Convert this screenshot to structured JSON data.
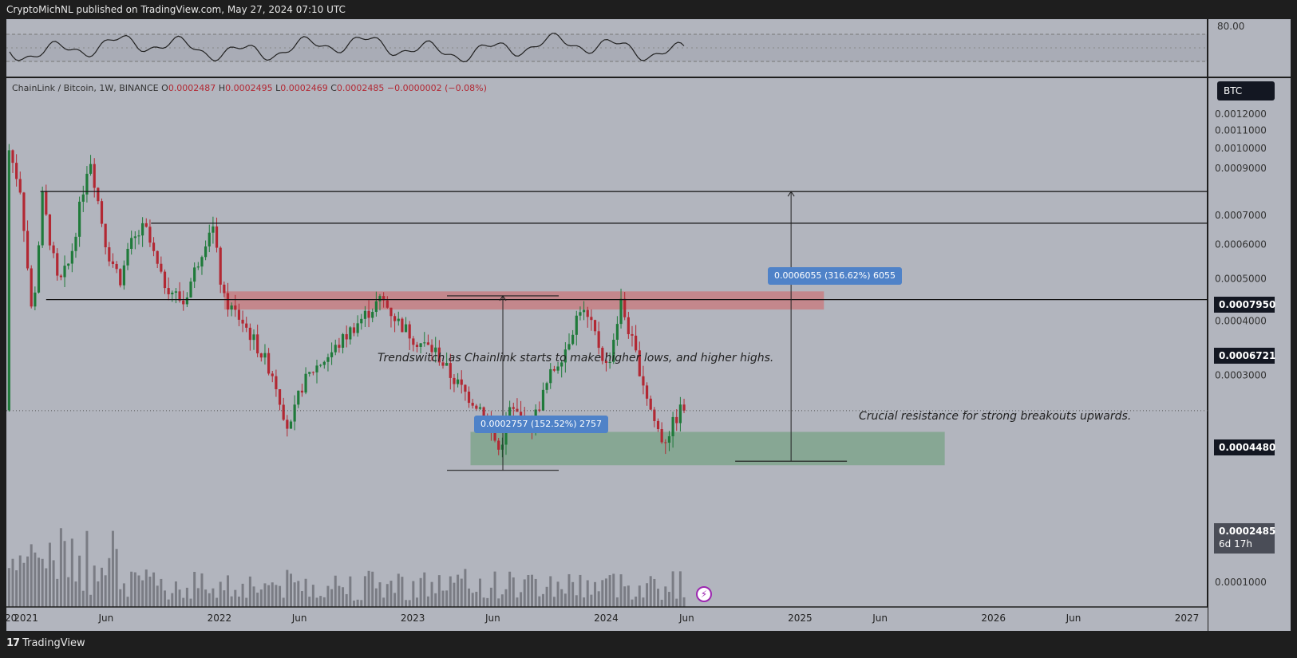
{
  "publisher_line": "CryptoMichNL published on TradingView.com, May 27, 2024 07:10 UTC",
  "brand": {
    "logo": "17",
    "name": "TradingView"
  },
  "symbol": {
    "name": "ChainLink / Bitcoin, 1W, BINANCE",
    "o_label": "O",
    "o": "0.0002487",
    "h_label": "H",
    "h": "0.0002495",
    "l_label": "L",
    "l": "0.0002469",
    "c_label": "C",
    "c": "0.0002485",
    "change": "−0.0000002 (−0.08%)"
  },
  "currency_button": "BTC",
  "rsi": {
    "level_label": "80.00"
  },
  "chart_data": {
    "type": "candlestick",
    "y_scale": "log",
    "ylim": [
      9.3e-05,
      0.0013
    ],
    "y_ticks": [
      "0.0012000",
      "0.0011000",
      "0.0010000",
      "0.0009000",
      "0.0007000",
      "0.0006000",
      "0.0005000",
      "0.0004000",
      "0.0003000",
      "0.0002000",
      "0.0001000"
    ],
    "x_range": [
      "2020-12-01",
      "2027-01-01"
    ],
    "x_ticks": [
      {
        "label": "'20",
        "date": "2020-12-01"
      },
      {
        "label": "2021",
        "date": "2021-01-01"
      },
      {
        "label": "Jun",
        "date": "2021-06-01"
      },
      {
        "label": "2022",
        "date": "2022-01-01"
      },
      {
        "label": "Jun",
        "date": "2022-06-01"
      },
      {
        "label": "2023",
        "date": "2023-01-01"
      },
      {
        "label": "Jun",
        "date": "2023-06-01"
      },
      {
        "label": "2024",
        "date": "2024-01-01"
      },
      {
        "label": "Jun",
        "date": "2024-06-01"
      },
      {
        "label": "2025",
        "date": "2025-01-01"
      },
      {
        "label": "Jun",
        "date": "2025-06-01"
      },
      {
        "label": "2026",
        "date": "2026-01-01"
      },
      {
        "label": "Jun",
        "date": "2026-06-01"
      },
      {
        "label": "2027",
        "date": "2027-01-01"
      }
    ],
    "price_path": [
      [
        "2020-12-01",
        0.00105
      ],
      [
        "2020-12-29",
        0.0008
      ],
      [
        "2021-01-20",
        0.0004
      ],
      [
        "2021-02-08",
        0.00077
      ],
      [
        "2021-03-10",
        0.00048
      ],
      [
        "2021-04-01",
        0.00055
      ],
      [
        "2021-05-08",
        0.00097
      ],
      [
        "2021-06-10",
        0.00058
      ],
      [
        "2021-07-05",
        0.0005
      ],
      [
        "2021-07-25",
        0.0006
      ],
      [
        "2021-08-20",
        0.00066
      ],
      [
        "2021-09-20",
        0.0005
      ],
      [
        "2021-11-01",
        0.00044
      ],
      [
        "2021-12-25",
        0.00068
      ],
      [
        "2022-01-15",
        0.00045
      ],
      [
        "2022-02-20",
        0.0004
      ],
      [
        "2022-03-20",
        0.00035
      ],
      [
        "2022-04-20",
        0.0003
      ],
      [
        "2022-05-20",
        0.00022
      ],
      [
        "2022-06-10",
        0.00028
      ],
      [
        "2022-07-05",
        0.00031
      ],
      [
        "2022-08-10",
        0.00034
      ],
      [
        "2022-09-20",
        0.00039
      ],
      [
        "2022-11-10",
        0.00045
      ],
      [
        "2022-12-10",
        0.0004
      ],
      [
        "2023-01-15",
        0.00036
      ],
      [
        "2023-02-20",
        0.00034
      ],
      [
        "2023-03-20",
        0.0003
      ],
      [
        "2023-04-20",
        0.00027
      ],
      [
        "2023-05-20",
        0.00025
      ],
      [
        "2023-06-20",
        0.0002
      ],
      [
        "2023-07-10",
        0.00025
      ],
      [
        "2023-08-20",
        0.00023
      ],
      [
        "2023-09-25",
        0.0003
      ],
      [
        "2023-10-25",
        0.00035
      ],
      [
        "2023-11-20",
        0.00043
      ],
      [
        "2023-12-15",
        0.00038
      ],
      [
        "2024-01-10",
        0.00031
      ],
      [
        "2024-02-05",
        0.00044
      ],
      [
        "2024-03-05",
        0.00033
      ],
      [
        "2024-04-05",
        0.00024
      ],
      [
        "2024-04-25",
        0.00021
      ],
      [
        "2024-05-27",
        0.000249
      ]
    ],
    "last_price": "0.0002485",
    "countdown": "6d 17h",
    "horizontal_levels": [
      {
        "label": "0.0007950",
        "value": 0.000795,
        "from": "2021-01-28"
      },
      {
        "label": "0.0006721",
        "value": 0.000672,
        "from": "2021-08-25"
      },
      {
        "label": "0.0004480",
        "value": 0.000448,
        "from": "2021-02-08"
      }
    ],
    "zones": [
      {
        "color": "#c77f84",
        "from": "2022-01-10",
        "to": "2025-02-15",
        "top": 0.000468,
        "bottom": 0.000425
      },
      {
        "color": "#7fa58d",
        "from": "2023-04-20",
        "to": "2025-10-01",
        "top": 0.000222,
        "bottom": 0.000186
      }
    ],
    "measurements": [
      {
        "label": "0.0002757 (152.52%) 2757",
        "date": "2023-06-20",
        "from": 0.000181,
        "to": 0.000457
      },
      {
        "label": "0.0006055 (316.62%) 6055",
        "date": "2024-12-15",
        "from": 0.00019,
        "to": 0.000795
      }
    ],
    "annotations": [
      {
        "text": "Trendswitch as Chainlink starts to make higher lows, and higher highs."
      },
      {
        "text": "Crucial resistance for strong breakouts upwards."
      }
    ]
  },
  "icons": {
    "flash": "flash-icon"
  }
}
